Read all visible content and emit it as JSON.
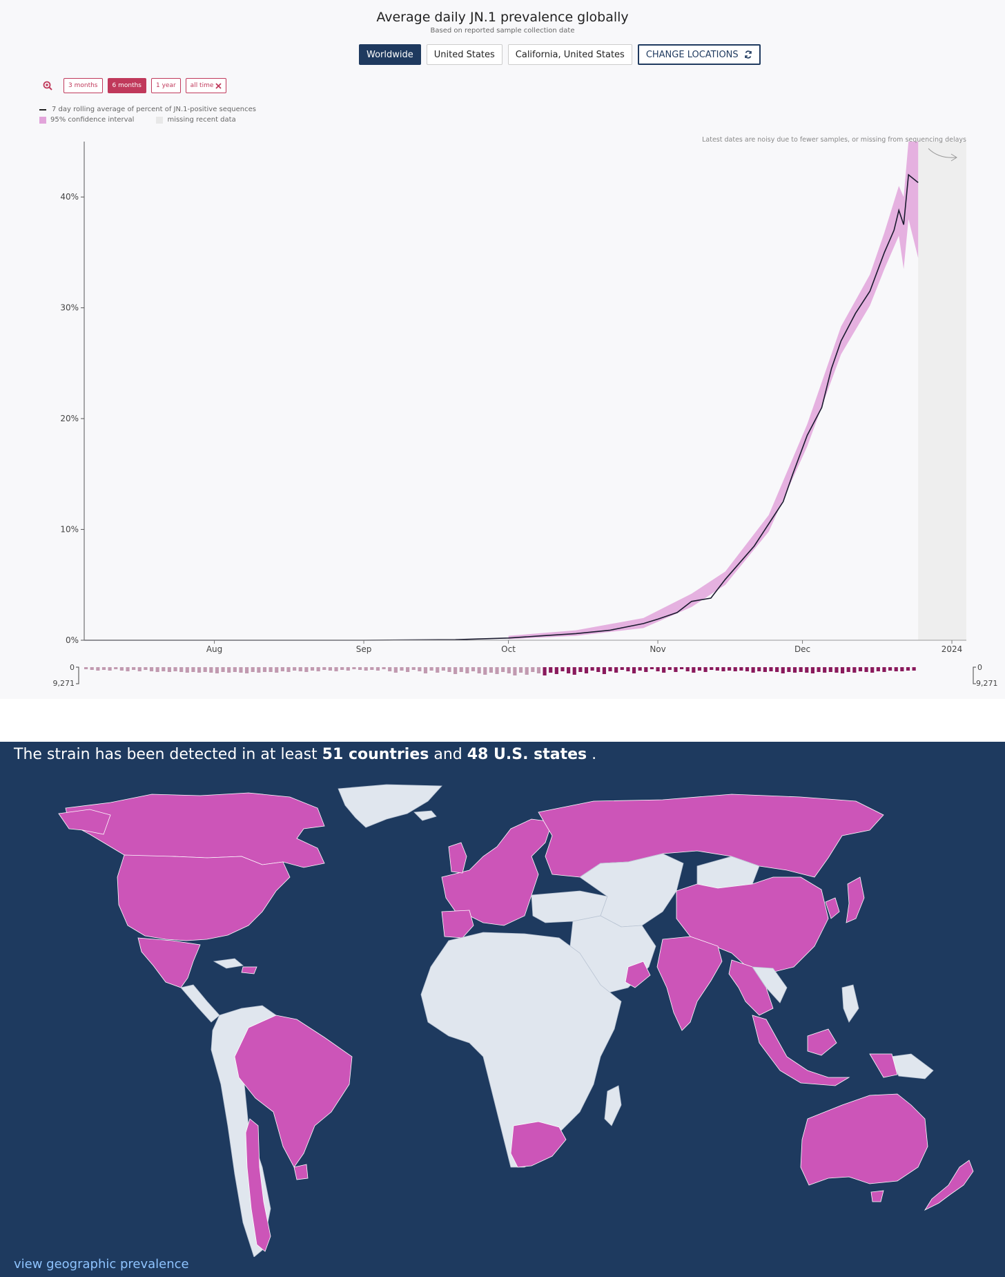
{
  "chart_data": {
    "type": "line",
    "title": "Average daily JN.1 prevalence globally",
    "subtitle": "Based on reported sample collection date",
    "x_tick_labels": [
      "Aug",
      "Sep",
      "Oct",
      "Nov",
      "Dec",
      "2024"
    ],
    "x_tick_dates": [
      "2023-08-01",
      "2023-09-01",
      "2023-10-01",
      "2023-11-01",
      "2023-12-01",
      "2024-01-01"
    ],
    "y_tick_labels": [
      "0%",
      "10%",
      "20%",
      "30%",
      "40%"
    ],
    "y_tick_values": [
      0,
      10,
      20,
      30,
      40
    ],
    "ylim": [
      0,
      45
    ],
    "xlim": [
      "2023-07-05",
      "2024-01-04"
    ],
    "grid": false,
    "legend_position": "top-left",
    "series": [
      {
        "name": "7 day rolling average of percent of JN.1-positive sequences",
        "color": "#1a1a2e",
        "points": [
          [
            "2023-07-05",
            0
          ],
          [
            "2023-08-01",
            0
          ],
          [
            "2023-09-01",
            0
          ],
          [
            "2023-09-20",
            0.05
          ],
          [
            "2023-10-01",
            0.2
          ],
          [
            "2023-10-08",
            0.4
          ],
          [
            "2023-10-15",
            0.6
          ],
          [
            "2023-10-22",
            0.9
          ],
          [
            "2023-10-29",
            1.5
          ],
          [
            "2023-11-01",
            1.9
          ],
          [
            "2023-11-05",
            2.5
          ],
          [
            "2023-11-08",
            3.5
          ],
          [
            "2023-11-12",
            3.8
          ],
          [
            "2023-11-15",
            5.5
          ],
          [
            "2023-11-18",
            7.0
          ],
          [
            "2023-11-21",
            8.5
          ],
          [
            "2023-11-24",
            10.5
          ],
          [
            "2023-11-27",
            12.5
          ],
          [
            "2023-11-29",
            15.0
          ],
          [
            "2023-12-02",
            18.5
          ],
          [
            "2023-12-05",
            21.0
          ],
          [
            "2023-12-07",
            24.5
          ],
          [
            "2023-12-09",
            27.0
          ],
          [
            "2023-12-12",
            29.5
          ],
          [
            "2023-12-15",
            31.5
          ],
          [
            "2023-12-18",
            35.0
          ],
          [
            "2023-12-20",
            37.0
          ],
          [
            "2023-12-21",
            38.8
          ],
          [
            "2023-12-22",
            37.5
          ],
          [
            "2023-12-23",
            42.0
          ],
          [
            "2023-12-25",
            41.3
          ]
        ]
      }
    ],
    "confidence_interval": {
      "name": "95% confidence interval",
      "color": "#e2a4da",
      "lower": [
        [
          "2023-10-01",
          0.1
        ],
        [
          "2023-10-15",
          0.4
        ],
        [
          "2023-10-29",
          1.1
        ],
        [
          "2023-11-08",
          3.0
        ],
        [
          "2023-11-15",
          5.0
        ],
        [
          "2023-11-24",
          9.8
        ],
        [
          "2023-12-02",
          17.5
        ],
        [
          "2023-12-09",
          25.8
        ],
        [
          "2023-12-15",
          30.2
        ],
        [
          "2023-12-18",
          33.5
        ],
        [
          "2023-12-21",
          36.5
        ],
        [
          "2023-12-22",
          33.5
        ],
        [
          "2023-12-23",
          38.0
        ],
        [
          "2023-12-25",
          34.5
        ]
      ],
      "upper": [
        [
          "2023-10-01",
          0.4
        ],
        [
          "2023-10-15",
          0.9
        ],
        [
          "2023-10-29",
          2.0
        ],
        [
          "2023-11-08",
          4.2
        ],
        [
          "2023-11-15",
          6.2
        ],
        [
          "2023-11-24",
          11.3
        ],
        [
          "2023-12-02",
          19.5
        ],
        [
          "2023-12-09",
          28.3
        ],
        [
          "2023-12-15",
          33.0
        ],
        [
          "2023-12-18",
          36.8
        ],
        [
          "2023-12-21",
          41.0
        ],
        [
          "2023-12-22",
          40.0
        ],
        [
          "2023-12-23",
          45.0
        ],
        [
          "2023-12-25",
          45.0
        ]
      ]
    },
    "missing_data": {
      "name": "missing recent data",
      "start": "2023-12-25",
      "end": "2024-01-04",
      "color": "#eeeeee"
    },
    "annotation": "Latest dates are noisy due to fewer samples, or missing from sequencing delays",
    "sample_count_axis": {
      "min_label": "0",
      "max_label": "9,271"
    }
  },
  "controls": {
    "locations": [
      "Worldwide",
      "United States",
      "California, United States"
    ],
    "active_location": "Worldwide",
    "change_locations_label": "CHANGE LOCATIONS",
    "ranges": [
      "3 months",
      "6 months",
      "1 year",
      "all time"
    ],
    "active_range": "6 months"
  },
  "legend": {
    "line_label": "7 day rolling average of percent of JN.1-positive sequences",
    "ci_label": "95% confidence interval",
    "missing_label": "missing recent data"
  },
  "map": {
    "detect_prefix": "The strain has been detected in at least",
    "countries_count": "51 countries",
    "detect_and": "and",
    "states_count": "48 U.S. states",
    "detect_suffix": ".",
    "link_label": "view geographic prevalence",
    "detected_color": "#cc55b8",
    "not_detected_color": "#e0e6ee",
    "ocean_color": "#1e3a5f"
  }
}
